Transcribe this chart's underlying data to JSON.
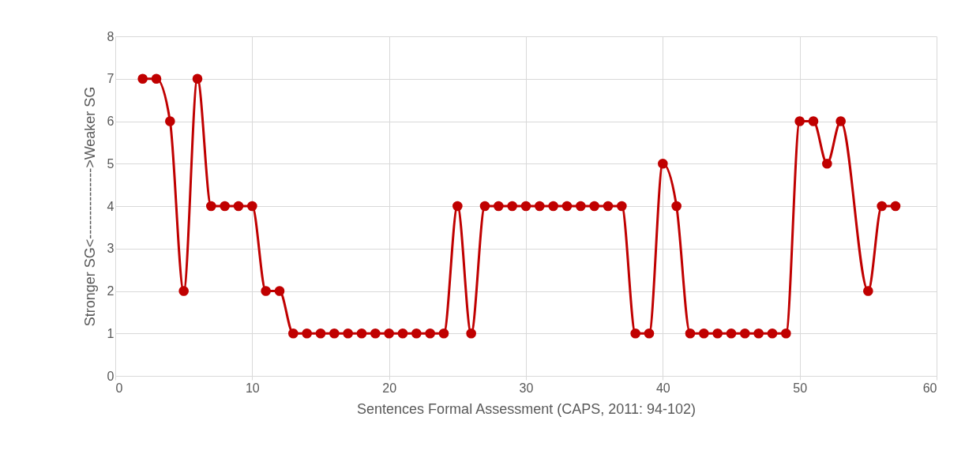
{
  "chart_data": {
    "type": "line",
    "xlabel": "Sentences Formal Assessment (CAPS, 2011: 94-102)",
    "ylabel": "Stronger SG<--------------->Weaker  SG",
    "x": [
      2,
      3,
      4,
      5,
      6,
      7,
      8,
      9,
      10,
      11,
      12,
      13,
      14,
      15,
      16,
      17,
      18,
      19,
      20,
      21,
      22,
      23,
      24,
      25,
      26,
      27,
      28,
      29,
      30,
      31,
      32,
      33,
      34,
      35,
      36,
      37,
      38,
      39,
      40,
      41,
      42,
      43,
      44,
      45,
      46,
      47,
      48,
      49,
      50,
      51,
      52,
      53,
      55,
      56,
      57
    ],
    "series": [
      {
        "color": "#c00000",
        "values": [
          7,
          7,
          6,
          2,
          7,
          4,
          4,
          4,
          4,
          2,
          2,
          1,
          1,
          1,
          1,
          1,
          1,
          1,
          1,
          1,
          1,
          1,
          1,
          4,
          1,
          4,
          4,
          4,
          4,
          4,
          4,
          4,
          4,
          4,
          4,
          4,
          1,
          1,
          5,
          4,
          1,
          1,
          1,
          1,
          1,
          1,
          1,
          1,
          6,
          6,
          5,
          6,
          2,
          4,
          4
        ]
      }
    ],
    "xlim": [
      0,
      60
    ],
    "xticks": [
      0,
      10,
      20,
      30,
      40,
      50,
      60
    ],
    "ylim": [
      0,
      8
    ],
    "yticks": [
      0,
      1,
      2,
      3,
      4,
      5,
      6,
      7,
      8
    ],
    "grid": true,
    "marker": "circle",
    "line_style": "solid"
  }
}
